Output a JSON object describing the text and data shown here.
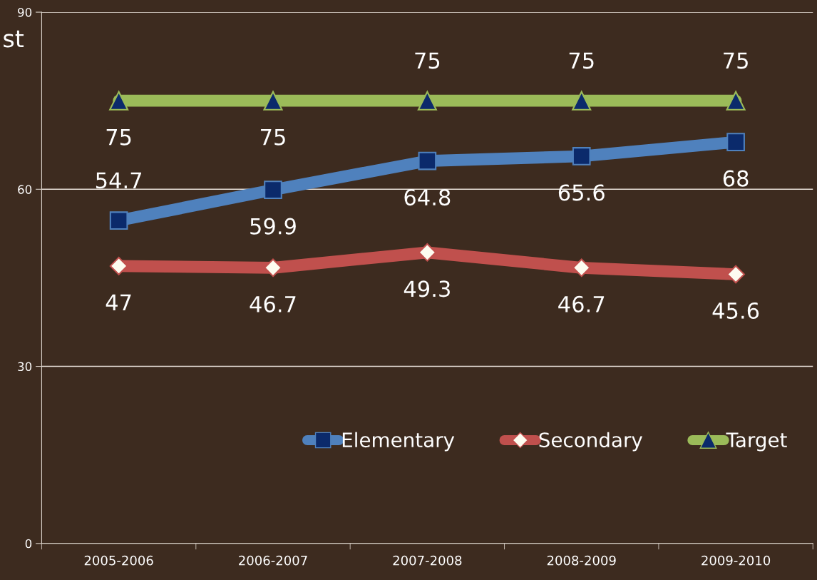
{
  "chart_data": {
    "type": "line",
    "categories": [
      "2005-2006",
      "2006-2007",
      "2007-2008",
      "2008-2009",
      "2009-2010"
    ],
    "series": [
      {
        "name": "Elementary",
        "color": "#4f81bd",
        "marker": "square",
        "values": [
          54.7,
          59.9,
          64.8,
          65.6,
          68
        ]
      },
      {
        "name": "Secondary",
        "color": "#c0504d",
        "marker": "diamond",
        "values": [
          47,
          46.7,
          49.3,
          46.7,
          45.6
        ]
      },
      {
        "name": "Target",
        "color": "#9bbb59",
        "marker": "triangle",
        "values": [
          75,
          75,
          75,
          75,
          75
        ]
      }
    ],
    "ylim": [
      0,
      90
    ],
    "yticks": [
      0,
      30,
      60,
      90
    ],
    "grid": "y",
    "legend": "bottom right",
    "data_labels": true,
    "annotations": [
      "st"
    ]
  }
}
